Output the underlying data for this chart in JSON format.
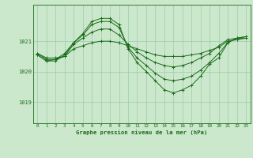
{
  "title": "Graphe pression niveau de la mer (hPa)",
  "background_color": "#cce8cc",
  "grid_color": "#99ccaa",
  "line_color": "#1a6b1a",
  "xlim": [
    -0.5,
    23.5
  ],
  "ylim": [
    1018.3,
    1022.2
  ],
  "yticks": [
    1019,
    1020,
    1021
  ],
  "xticks": [
    0,
    1,
    2,
    3,
    4,
    5,
    6,
    7,
    8,
    9,
    10,
    11,
    12,
    13,
    14,
    15,
    16,
    17,
    18,
    19,
    20,
    21,
    22,
    23
  ],
  "series": [
    {
      "x": [
        0,
        1,
        2,
        3,
        4,
        5,
        6,
        7,
        8,
        9,
        10,
        11,
        12,
        13,
        14,
        15,
        16,
        17,
        18,
        19,
        20,
        21,
        22,
        23
      ],
      "y": [
        1020.6,
        1020.45,
        1020.45,
        1020.5,
        1020.75,
        1020.85,
        1020.95,
        1021.0,
        1021.0,
        1020.95,
        1020.85,
        1020.75,
        1020.65,
        1020.55,
        1020.5,
        1020.5,
        1020.5,
        1020.55,
        1020.6,
        1020.7,
        1020.8,
        1021.0,
        1021.05,
        1021.1
      ]
    },
    {
      "x": [
        0,
        1,
        2,
        3,
        4,
        5,
        6,
        7,
        8,
        9,
        10,
        11,
        12,
        13,
        14,
        15,
        16,
        17,
        18,
        19,
        20,
        21,
        22,
        23
      ],
      "y": [
        1020.6,
        1020.4,
        1020.4,
        1020.5,
        1020.9,
        1021.1,
        1021.3,
        1021.4,
        1021.4,
        1021.2,
        1020.9,
        1020.65,
        1020.45,
        1020.3,
        1020.2,
        1020.15,
        1020.2,
        1020.3,
        1020.45,
        1020.6,
        1020.85,
        1021.05,
        1021.1,
        1021.1
      ]
    },
    {
      "x": [
        0,
        1,
        2,
        3,
        4,
        5,
        6,
        7,
        8,
        9,
        10,
        11,
        12,
        13,
        14,
        15,
        16,
        17,
        18,
        19,
        20,
        21,
        22,
        23
      ],
      "y": [
        1020.55,
        1020.35,
        1020.35,
        1020.55,
        1020.95,
        1021.2,
        1021.55,
        1021.65,
        1021.65,
        1021.45,
        1020.8,
        1020.45,
        1020.2,
        1019.95,
        1019.75,
        1019.7,
        1019.75,
        1019.85,
        1020.05,
        1020.3,
        1020.6,
        1020.95,
        1021.1,
        1021.15
      ]
    },
    {
      "x": [
        0,
        1,
        2,
        3,
        4,
        5,
        6,
        7,
        8,
        9,
        10,
        11,
        12,
        13,
        14,
        15,
        16,
        17,
        18,
        19,
        20,
        21,
        22,
        23
      ],
      "y": [
        1020.55,
        1020.35,
        1020.4,
        1020.6,
        1020.95,
        1021.25,
        1021.65,
        1021.75,
        1021.75,
        1021.55,
        1020.75,
        1020.3,
        1020.0,
        1019.7,
        1019.4,
        1019.3,
        1019.4,
        1019.55,
        1019.85,
        1020.25,
        1020.45,
        1020.95,
        1021.1,
        1021.15
      ]
    }
  ]
}
